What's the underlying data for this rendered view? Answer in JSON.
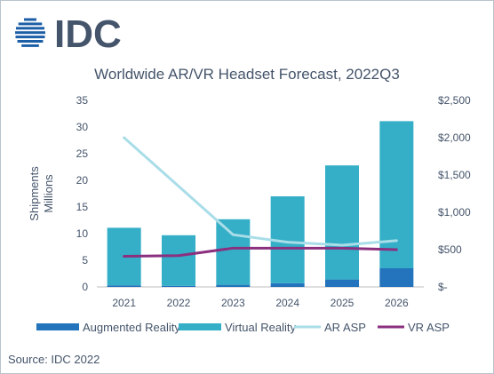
{
  "brand": {
    "logo_text": "IDC",
    "logo_color": "#1d5fa7"
  },
  "source": "Source: IDC 2022",
  "colors": {
    "augmented_reality": "#2374bd",
    "virtual_reality": "#34afc7",
    "ar_asp": "#a9dde8",
    "vr_asp": "#8b2f7f",
    "text": "#44546a",
    "axis": "#bfbfbf"
  },
  "chart_data": {
    "type": "bar",
    "title": "Worldwide AR/VR Headset Forecast, 2022Q3",
    "ylabel": [
      "Shipments",
      "Millions"
    ],
    "ylabel_right": "",
    "categories": [
      "2021",
      "2022",
      "2023",
      "2024",
      "2025",
      "2026"
    ],
    "stacked": true,
    "ylim": [
      0,
      35
    ],
    "y_ticks": [
      0,
      5,
      10,
      15,
      20,
      25,
      30,
      35
    ],
    "y2lim": [
      0,
      2500
    ],
    "y2_ticks": [
      0,
      500,
      1000,
      1500,
      2000,
      2500
    ],
    "y2_tick_labels": [
      "$-",
      "$500",
      "$1,000",
      "$1,500",
      "$2,000",
      "$2,500"
    ],
    "series": [
      {
        "name": "Augmented Reality",
        "type": "bar",
        "axis": "left",
        "values": [
          0.3,
          0.2,
          0.4,
          0.7,
          1.4,
          3.5
        ]
      },
      {
        "name": "Virtual Reality",
        "type": "bar",
        "axis": "left",
        "values": [
          10.8,
          9.5,
          12.3,
          16.3,
          21.4,
          27.6
        ]
      },
      {
        "name": "AR ASP",
        "type": "line",
        "axis": "right",
        "values": [
          2000,
          1350,
          700,
          600,
          560,
          620
        ]
      },
      {
        "name": "VR ASP",
        "type": "line",
        "axis": "right",
        "values": [
          410,
          420,
          520,
          520,
          520,
          500
        ]
      }
    ],
    "grid": false,
    "legend_position": "bottom"
  }
}
